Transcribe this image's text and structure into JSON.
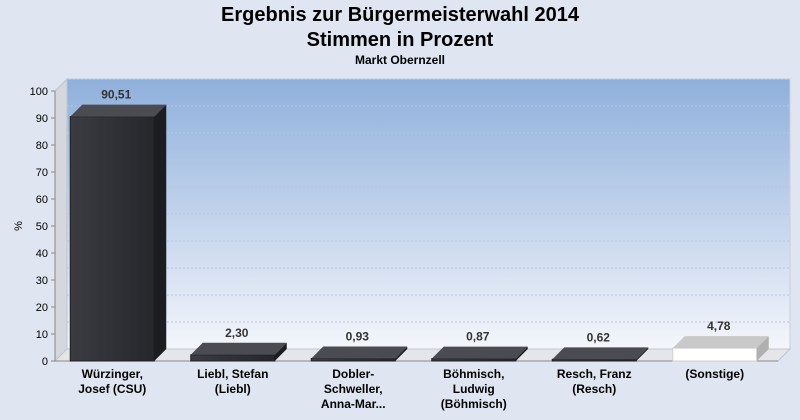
{
  "header": {
    "title": "Ergebnis zur Bürgermeisterwahl 2014",
    "subtitle": "Stimmen in Prozent",
    "location": "Markt Obernzell"
  },
  "colors": {
    "background": "#dfe6f2",
    "plot_top": "#8fb0dc",
    "plot_bottom": "#f4f6fb",
    "bar_dark": "#2c2e33",
    "bar_light": "#ffffff"
  },
  "chart_data": {
    "type": "bar",
    "title": "Ergebnis zur Bürgermeisterwahl 2014",
    "subtitle": "Stimmen in Prozent",
    "ylabel": "%",
    "xlabel": "",
    "ylim": [
      0,
      100
    ],
    "yticks": [
      "0",
      "10",
      "20",
      "30",
      "40",
      "50",
      "60",
      "70",
      "80",
      "90",
      "100"
    ],
    "grid": true,
    "categories": [
      [
        "Würzinger,",
        "Josef (CSU)"
      ],
      [
        "Liebl, Stefan",
        "(Liebl)"
      ],
      [
        "Dobler-",
        "Schweller,",
        "Anna-Mar..."
      ],
      [
        "Böhmisch,",
        "Ludwig",
        "(Böhmisch)"
      ],
      [
        "Resch, Franz",
        "(Resch)"
      ],
      [
        "(Sonstige)"
      ]
    ],
    "values": [
      90.51,
      2.3,
      0.93,
      0.87,
      0.62,
      4.78
    ],
    "value_labels": [
      "90,51",
      "2,30",
      "0,93",
      "0,87",
      "0,62",
      "4,78"
    ],
    "bar_styles": [
      "dark",
      "dark",
      "dark",
      "dark",
      "dark",
      "light"
    ]
  }
}
